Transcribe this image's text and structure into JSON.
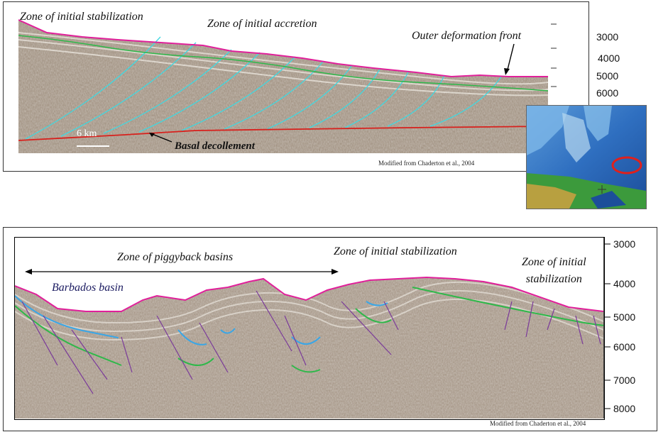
{
  "top_panel": {
    "labels": {
      "stabilization": "Zone of initial stabilization",
      "accretion": "Zone of initial accretion",
      "deformation_front": "Outer deformation front",
      "decollement": "Basal decollement",
      "scale": "6 km"
    },
    "credit": "Modified from Chaderton et al., 2004",
    "depth_ticks": [
      "3000",
      "4000",
      "5000",
      "6000"
    ]
  },
  "bottom_panel": {
    "labels": {
      "piggyback": "Zone of piggyback basins",
      "stabilization_mid": "Zone of initial stabilization",
      "stabilization_right": "Zone of initial\nstabilization",
      "barbados": "Barbados basin"
    },
    "credit": "Modified from Chaderton et al., 2004",
    "depth_ticks": [
      "3000",
      "4000",
      "5000",
      "6000",
      "7000",
      "8000"
    ]
  },
  "colors": {
    "seafloor": "#e0209a",
    "fault_cyan": "#40d8e0",
    "horizon_green": "#2fb84a",
    "horizon_blue": "#3aa6e6",
    "decollement_red": "#d8201c",
    "fault_purple": "#7a3a9a",
    "location_marker": "#e0201c"
  },
  "inset_map": {
    "marker": "location-ellipse"
  }
}
